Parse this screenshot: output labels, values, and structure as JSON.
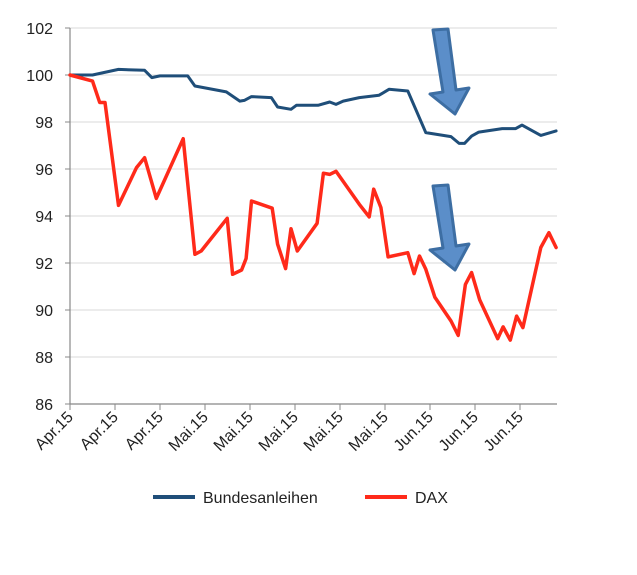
{
  "chart_data": {
    "type": "line",
    "title": "",
    "xlabel": "",
    "ylabel": "",
    "ylim": [
      86,
      102
    ],
    "yticks": [
      86,
      88,
      90,
      92,
      94,
      96,
      98,
      100,
      102
    ],
    "xlim": [
      0,
      54.2
    ],
    "xtick_positions": [
      0,
      5,
      10,
      15,
      20,
      25,
      30,
      35,
      40,
      45,
      50
    ],
    "xtick_labels": [
      "Apr.15",
      "Apr.15",
      "Apr.15",
      "Mai.15",
      "Mai.15",
      "Mai.15",
      "Mai.15",
      "Mai.15",
      "Jun.15",
      "Jun.15",
      "Jun.15"
    ],
    "grid": "horizontal",
    "legend_position": "bottom",
    "series": [
      {
        "name": "Bundesanleihen",
        "color": "#1f4e79",
        "x": [
          0,
          2.5,
          5.4,
          8.3,
          9.1,
          10,
          13.1,
          13.9,
          17.4,
          18.9,
          19.4,
          20.2,
          22.4,
          23.1,
          24.6,
          25.2,
          27.6,
          28.9,
          29.6,
          30.4,
          32.2,
          34.4,
          35.5,
          37.6,
          39.6,
          42.4,
          43.3,
          43.9,
          44.7,
          45.5,
          48.1,
          49.6,
          50.3,
          52.4,
          54.1
        ],
        "y": [
          100,
          100,
          100.24,
          100.2,
          99.89,
          99.96,
          99.96,
          99.53,
          99.28,
          98.89,
          98.92,
          99.08,
          99.04,
          98.64,
          98.54,
          98.71,
          98.71,
          98.85,
          98.75,
          98.89,
          99.04,
          99.14,
          99.39,
          99.32,
          97.55,
          97.38,
          97.09,
          97.09,
          97.4,
          97.57,
          97.72,
          97.72,
          97.87,
          97.43,
          97.62
        ]
      },
      {
        "name": "DAX",
        "color": "#ff2a1a",
        "x": [
          0,
          2.5,
          3.3,
          3.9,
          5.4,
          7.4,
          8.3,
          9.6,
          12.6,
          13.9,
          14.6,
          17.5,
          18.1,
          19.1,
          19.6,
          20.2,
          22.5,
          23.1,
          24,
          24.6,
          25.3,
          27.5,
          28.2,
          28.9,
          29.6,
          32.2,
          33.3,
          33.8,
          34.6,
          35.4,
          37.6,
          38.3,
          38.9,
          39.6,
          40.6,
          42.4,
          43.2,
          44,
          44.7,
          45.6,
          47.6,
          48.2,
          49,
          49.7,
          50.4,
          52.4,
          53.3,
          54.1
        ],
        "y": [
          100,
          99.74,
          98.83,
          98.83,
          94.45,
          96.06,
          96.48,
          94.75,
          97.29,
          92.37,
          92.51,
          93.9,
          91.52,
          91.7,
          92.19,
          94.64,
          94.33,
          92.8,
          91.76,
          93.46,
          92.51,
          93.69,
          95.82,
          95.77,
          95.9,
          94.5,
          93.96,
          95.14,
          94.36,
          92.26,
          92.44,
          91.55,
          92.3,
          91.73,
          90.55,
          89.53,
          88.92,
          91.09,
          91.59,
          90.43,
          88.78,
          89.28,
          88.72,
          89.74,
          89.25,
          92.66,
          93.29,
          92.66
        ]
      }
    ],
    "annotations": [
      {
        "type": "arrow-down",
        "color": "#5b8ec9",
        "near_series": "Bundesanleihen",
        "x": 43
      },
      {
        "type": "arrow-down",
        "color": "#5b8ec9",
        "near_series": "DAX",
        "x": 43
      }
    ]
  }
}
